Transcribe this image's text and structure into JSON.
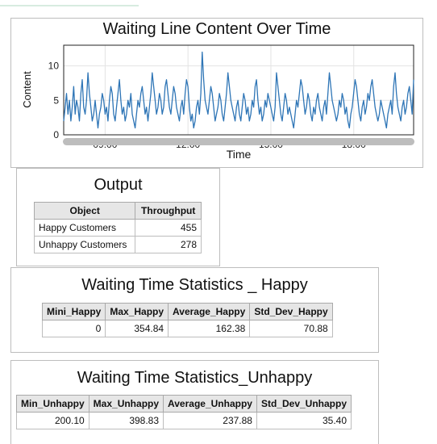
{
  "chart_data": {
    "type": "line",
    "title": "Waiting Line Content Over Time",
    "xlabel": "Time",
    "ylabel": "Content",
    "x_ticks": [
      "09:00",
      "12:00",
      "15:00",
      "18:00"
    ],
    "x_range": [
      "07:30",
      "20:10"
    ],
    "y_ticks": [
      0,
      5,
      10
    ],
    "ylim": [
      0,
      13
    ],
    "grid": true,
    "series_color": "#2e75b6",
    "series": [
      {
        "values": [
          2,
          4,
          6,
          3,
          5,
          2,
          4,
          7,
          3,
          5,
          4,
          2,
          6,
          8,
          4,
          3,
          5,
          9,
          6,
          4,
          2,
          3,
          5,
          3,
          1,
          3,
          4,
          6,
          5,
          3,
          4,
          2,
          5,
          7,
          6,
          3,
          2,
          4,
          6,
          8,
          5,
          3,
          4,
          2,
          3,
          5,
          4,
          6,
          3,
          2,
          1,
          3,
          5,
          4,
          6,
          7,
          5,
          3,
          4,
          2,
          4,
          6,
          9,
          7,
          5,
          3,
          4,
          6,
          5,
          3,
          4,
          7,
          8,
          6,
          4,
          3,
          5,
          7,
          6,
          4,
          3,
          2,
          4,
          5,
          3,
          6,
          8,
          7,
          4,
          2,
          3,
          1,
          2,
          4,
          5,
          3,
          6,
          12,
          8,
          5,
          4,
          3,
          5,
          7,
          6,
          4,
          2,
          3,
          4,
          6,
          5,
          3,
          2,
          4,
          6,
          9,
          7,
          5,
          4,
          3,
          2,
          4,
          5,
          3,
          2,
          4,
          6,
          5,
          3,
          4,
          2,
          3,
          5,
          4,
          7,
          8,
          5,
          3,
          4,
          2,
          3,
          5,
          4,
          6,
          5,
          4,
          3,
          2,
          4,
          9,
          7,
          5,
          3,
          2,
          4,
          6,
          5,
          3,
          4,
          3,
          2,
          1,
          3,
          5,
          4,
          6,
          8,
          7,
          5,
          3,
          4,
          6,
          5,
          3,
          2,
          4,
          3,
          5,
          6,
          4,
          3,
          2,
          4,
          5,
          3,
          6,
          9,
          7,
          5,
          4,
          3,
          2,
          3,
          5,
          4,
          6,
          5,
          3,
          4,
          2,
          1,
          3,
          4,
          6,
          8,
          7,
          5,
          3,
          2,
          4,
          5,
          3,
          4,
          6,
          5,
          7,
          8,
          6,
          4,
          3,
          2,
          3,
          5,
          4,
          3,
          2,
          1,
          3,
          4,
          5,
          3,
          7,
          9,
          6,
          4,
          3,
          2,
          4,
          5,
          3,
          4,
          6,
          7,
          5,
          3,
          8
        ]
      }
    ]
  },
  "output": {
    "title": "Output",
    "headers": [
      "Object",
      "Throughput"
    ],
    "rows": [
      [
        "Happy Customers",
        "455"
      ],
      [
        "Unhappy Customers",
        "278"
      ]
    ]
  },
  "happy_stats": {
    "title": "Waiting Time Statistics _ Happy",
    "headers": [
      "Mini_Happy",
      "Max_Happy",
      "Average_Happy",
      "Std_Dev_Happy"
    ],
    "values": [
      "0",
      "354.84",
      "162.38",
      "70.88"
    ]
  },
  "unhappy_stats": {
    "title": "Waiting Time Statistics_Unhappy",
    "headers": [
      "Min_Unhappy",
      "Max_Unhappy",
      "Average_Unhappy",
      "Std_Dev_Unhappy"
    ],
    "values": [
      "200.10",
      "398.83",
      "237.88",
      "35.40"
    ]
  }
}
